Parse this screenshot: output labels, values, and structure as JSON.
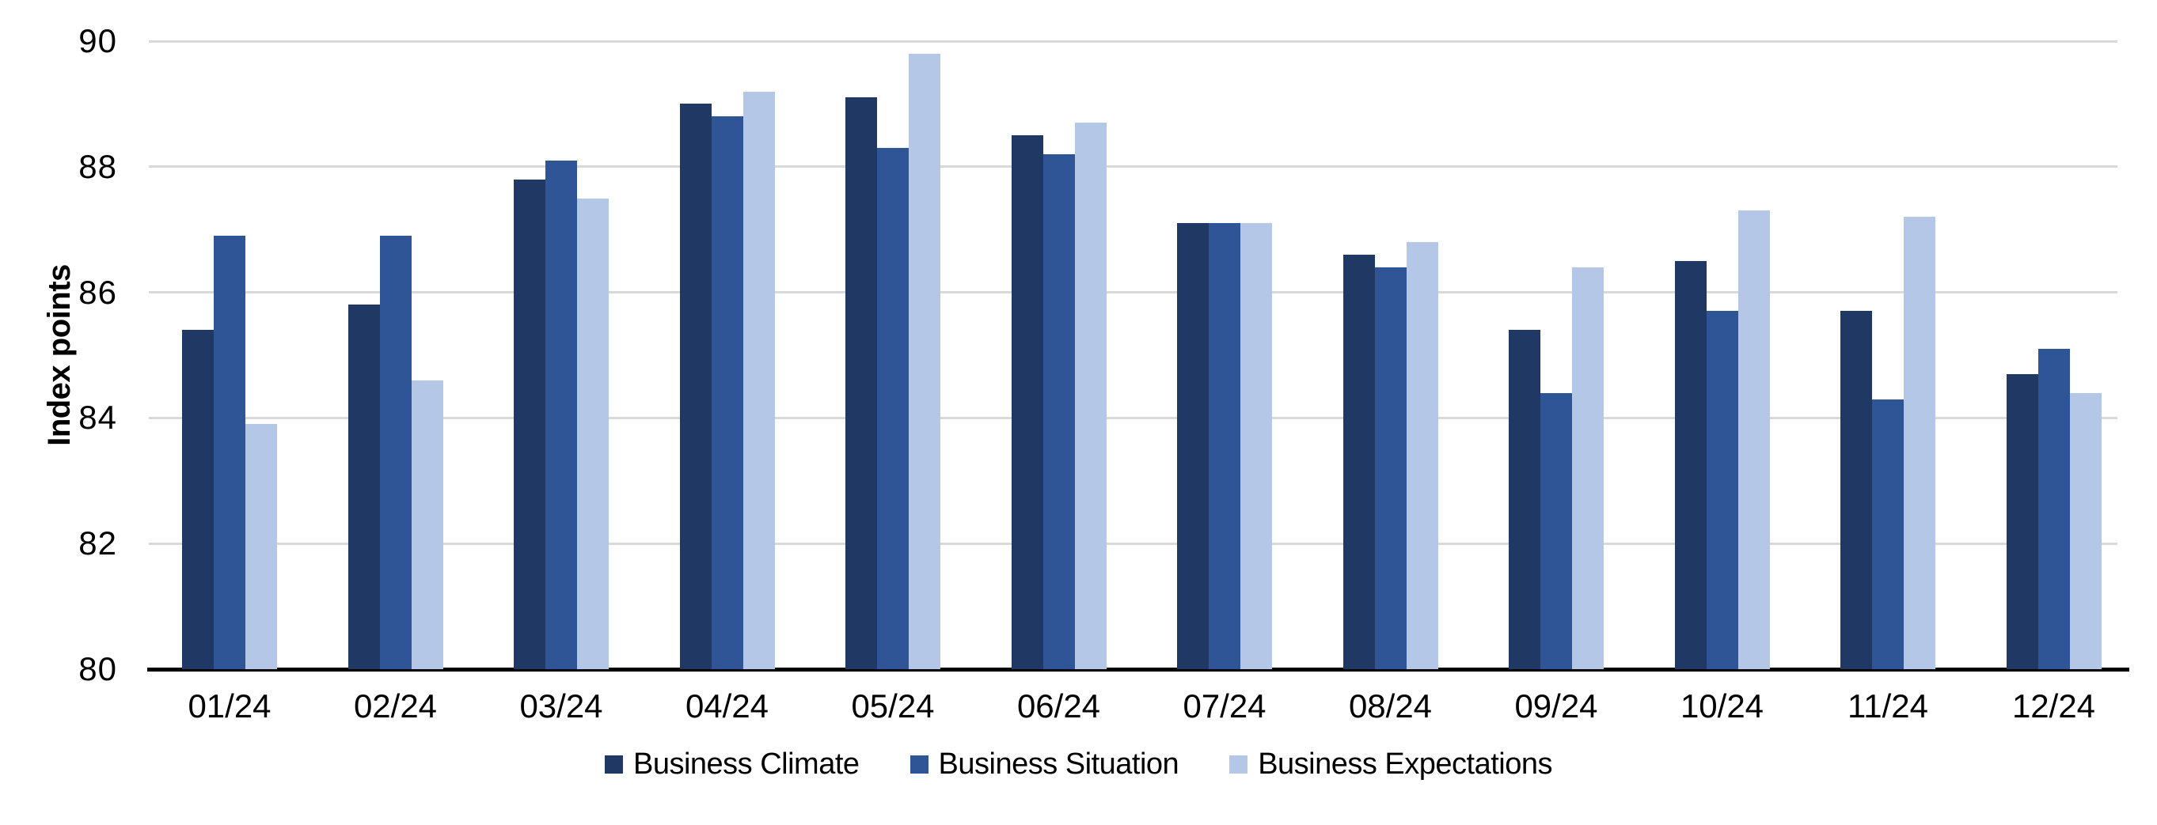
{
  "chart_data": {
    "type": "bar",
    "title": "",
    "xlabel": "",
    "ylabel": "Index points",
    "ylim": [
      80,
      90
    ],
    "yticks": [
      80,
      82,
      84,
      86,
      88,
      90
    ],
    "grid": "horizontal-gridlines-on",
    "gridline_color": "#D9D9D9",
    "axis_line_color": "#000000",
    "legend_position": "bottom-center",
    "categories": [
      "01/24",
      "02/24",
      "03/24",
      "04/24",
      "05/24",
      "06/24",
      "07/24",
      "08/24",
      "09/24",
      "10/24",
      "11/24",
      "12/24"
    ],
    "series": [
      {
        "name": "Business Climate",
        "color": "#1F3864",
        "values": [
          85.4,
          85.8,
          87.8,
          89.0,
          89.1,
          88.5,
          87.1,
          86.6,
          85.4,
          86.5,
          85.7,
          84.7
        ]
      },
      {
        "name": "Business Situation",
        "color": "#2F5597",
        "values": [
          86.9,
          86.9,
          88.1,
          88.8,
          88.3,
          88.2,
          87.1,
          86.4,
          84.4,
          85.7,
          84.3,
          85.1
        ]
      },
      {
        "name": "Business Expectations",
        "color": "#B4C7E7",
        "values": [
          83.9,
          84.6,
          87.5,
          89.2,
          89.8,
          88.7,
          87.1,
          86.8,
          86.4,
          87.3,
          87.2,
          84.4
        ]
      }
    ]
  }
}
